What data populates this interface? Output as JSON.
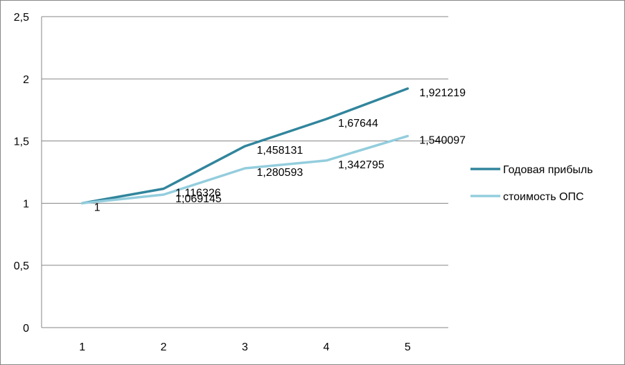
{
  "chart_data": {
    "type": "line",
    "categories": [
      "1",
      "2",
      "3",
      "4",
      "5"
    ],
    "series": [
      {
        "name": "Годовая прибыль",
        "color": "#31859C",
        "values": [
          1,
          1.116326,
          1.458131,
          1.67644,
          1.921219
        ],
        "labels": [
          "1",
          "1,116326",
          "1,458131",
          "1,67644",
          "1,921219"
        ]
      },
      {
        "name": "стоимость ОПС",
        "color": "#93CDDD",
        "values": [
          1,
          1.069145,
          1.280593,
          1.342795,
          1.540097
        ],
        "labels": [
          "",
          "1,069145",
          "1,280593",
          "1,342795",
          "1,540097"
        ]
      }
    ],
    "y_ticks": [
      "0",
      "0,5",
      "1",
      "1,5",
      "2",
      "2,5"
    ],
    "ylim": [
      0,
      2.5
    ],
    "grid": true,
    "legend_position": "right"
  }
}
